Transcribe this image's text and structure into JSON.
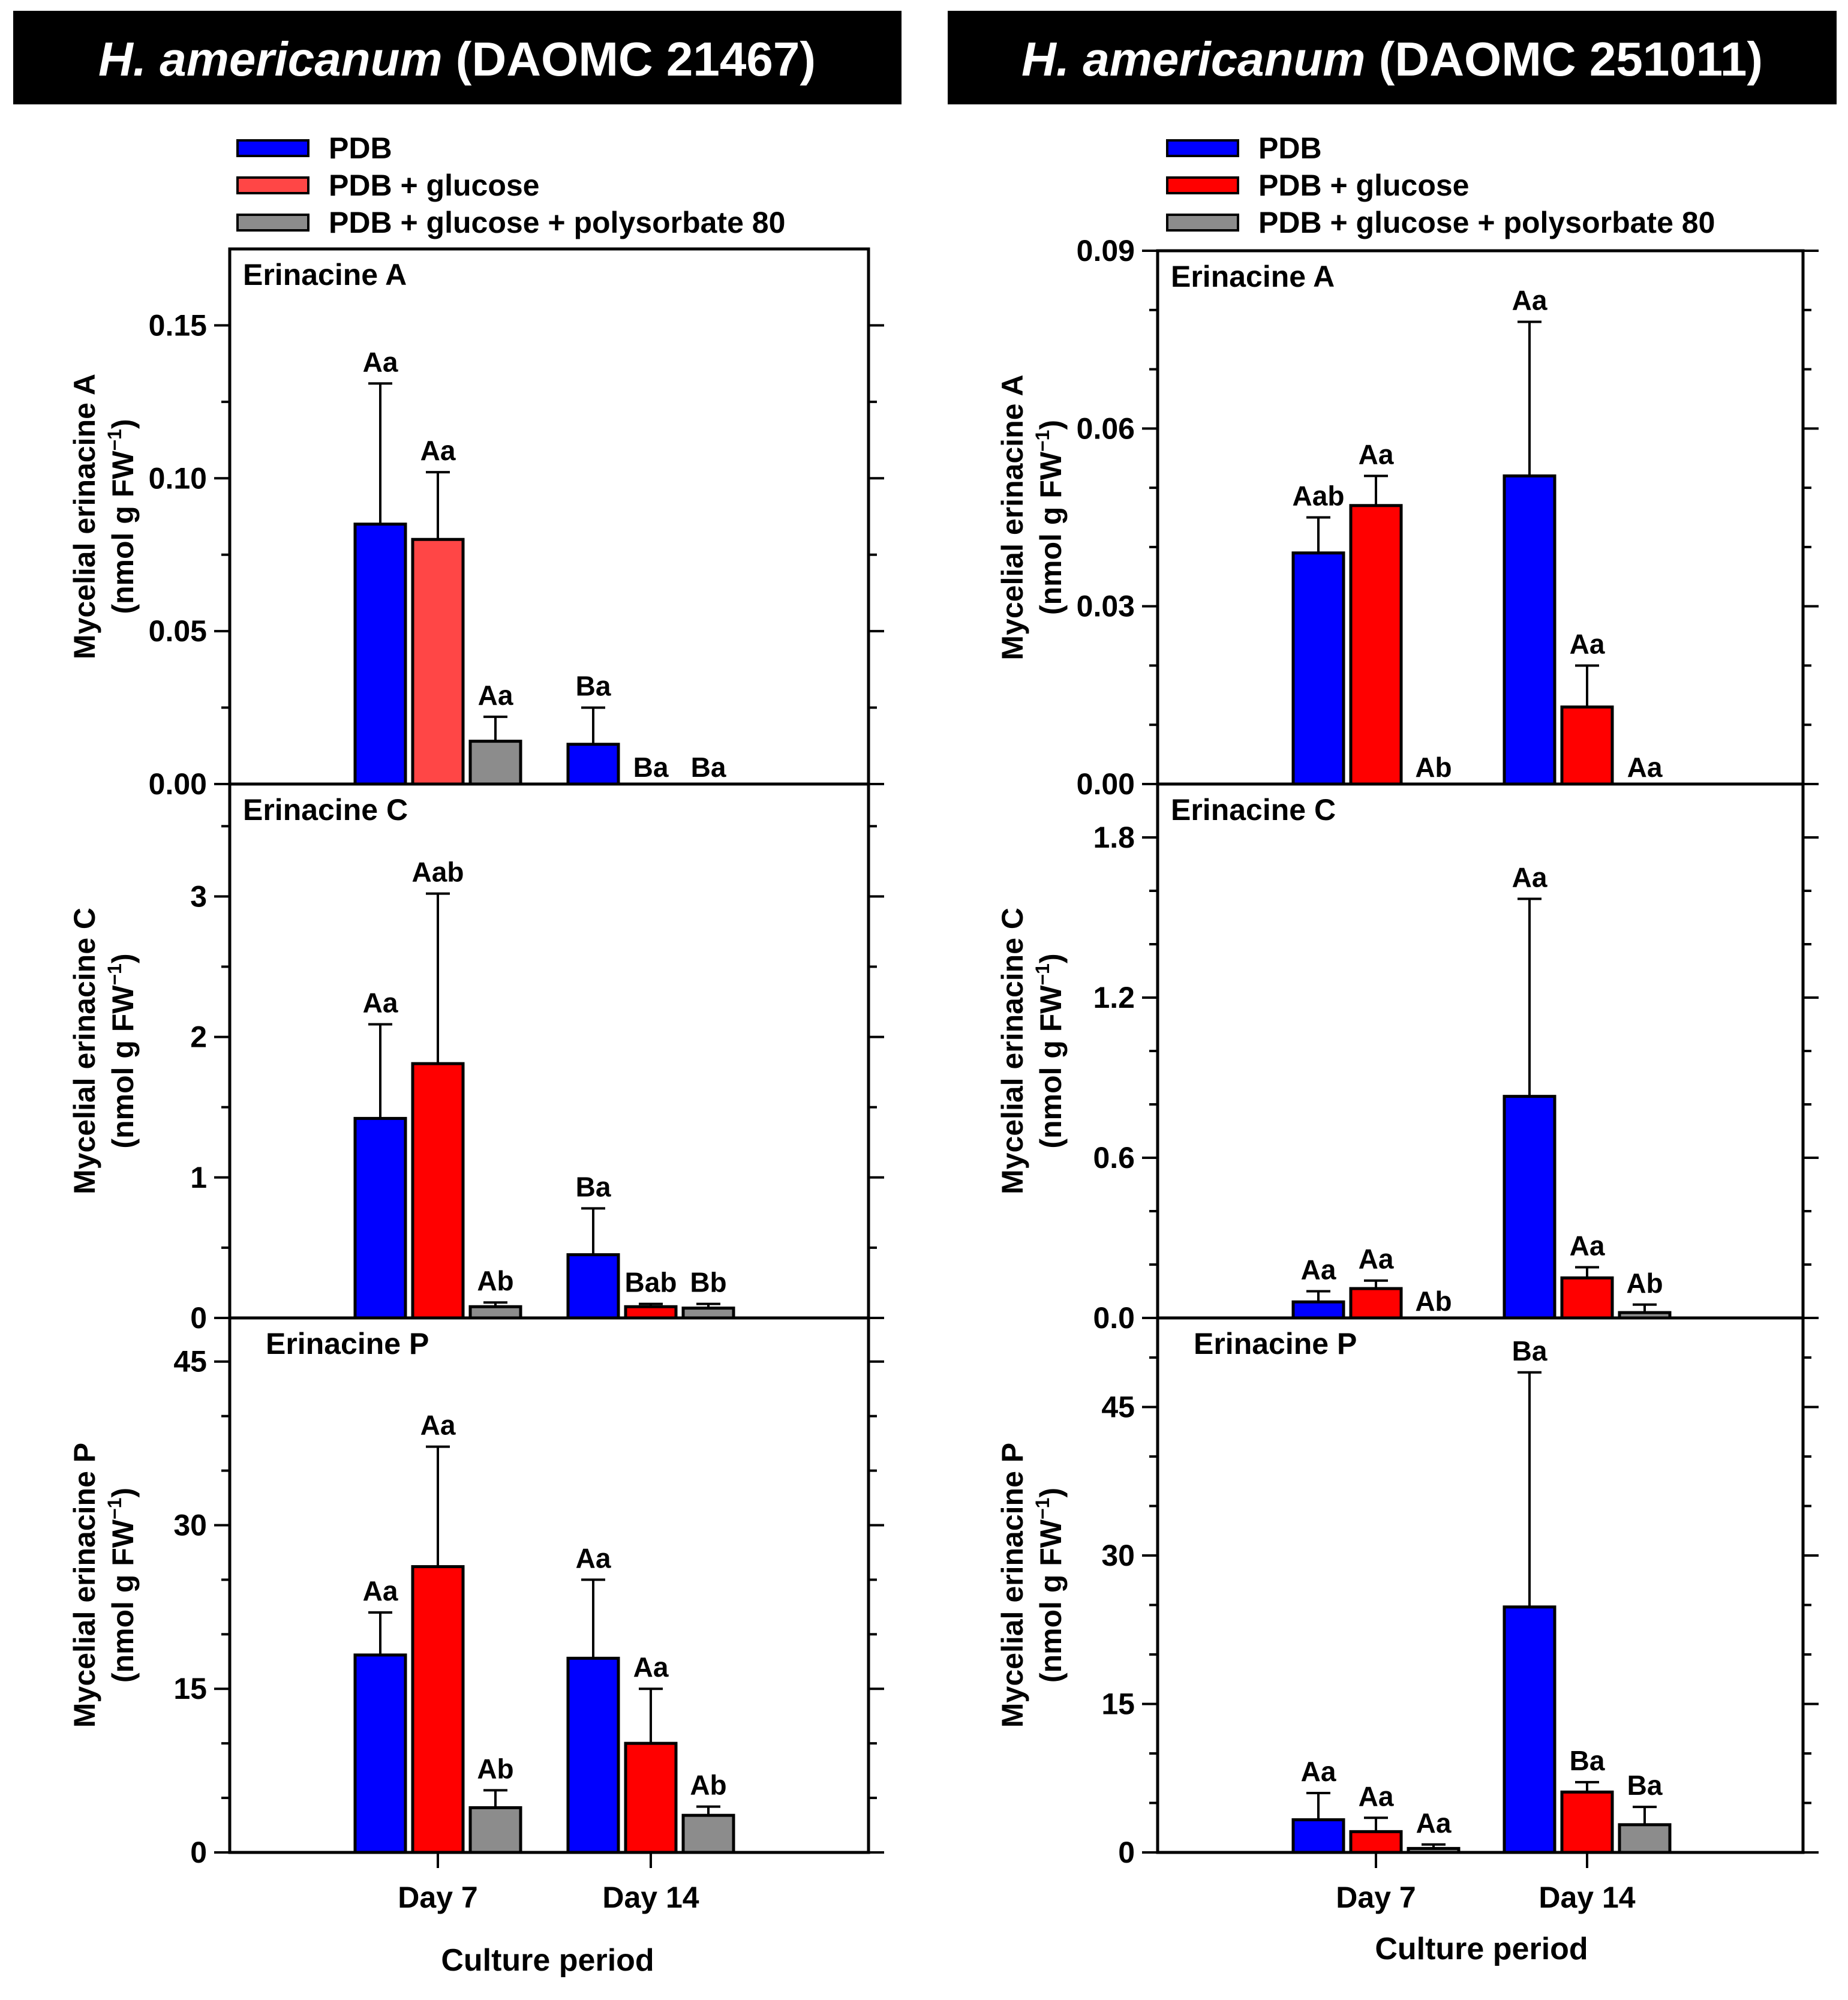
{
  "colors": {
    "blue": "#0000ff",
    "red": "#ff0000",
    "light_red": "#ff4646",
    "gray": "#8c8c8c",
    "header_bg": "#000000",
    "header_text": "#ffffff",
    "axis": "#000000"
  },
  "legend": {
    "entries": [
      "PDB",
      "PDB + glucose",
      "PDB + glucose + polysorbate 80"
    ]
  },
  "columns": [
    {
      "title_italic": "H. americanum",
      "title_rest": " (DAOMC 21467)",
      "xlabel": "Culture period",
      "categories": [
        "Day 7",
        "Day 14"
      ]
    },
    {
      "title_italic": "H.  americanum",
      "title_rest": " (DAOMC 251011)",
      "xlabel": "Culture period",
      "categories": [
        "Day 7",
        "Day 14"
      ]
    }
  ],
  "chart_data": [
    {
      "type": "bar",
      "strain": "H. americanum (DAOMC 21467)",
      "title": "Erinacine A",
      "ylabel": "Mycelial erinacine A",
      "ylabel_unit": "(nmol g FW",
      "ylabel_exp": "−1",
      "ylabel_close": ")",
      "ylim": [
        0,
        0.175
      ],
      "yticks": [
        0,
        0.05,
        0.1,
        0.15
      ],
      "yticklabels": [
        "0.00",
        "0.05",
        "0.10",
        "0.15"
      ],
      "minor_step": 0.025,
      "categories": [
        "Day 7",
        "Day 14"
      ],
      "series": [
        {
          "name": "PDB",
          "color": "#0000ff",
          "values": [
            0.085,
            0.013
          ],
          "errors": [
            0.131,
            0.025
          ],
          "labels": [
            "Aa",
            "Ba"
          ]
        },
        {
          "name": "PDB + glucose",
          "color": "#ff4646",
          "values": [
            0.08,
            0
          ],
          "errors": [
            0.102,
            null
          ],
          "labels": [
            "Aa",
            "Ba"
          ]
        },
        {
          "name": "PDB + glucose + polysorbate 80",
          "color": "#8c8c8c",
          "values": [
            0.014,
            0
          ],
          "errors": [
            0.022,
            null
          ],
          "labels": [
            "Aa",
            "Ba"
          ]
        }
      ]
    },
    {
      "type": "bar",
      "strain": "H. americanum (DAOMC 21467)",
      "title": "Erinacine C",
      "ylabel": "Mycelial erinacine C",
      "ylabel_unit": "(nmol g FW",
      "ylabel_exp": "−1",
      "ylabel_close": ")",
      "ylim": [
        0,
        3.8
      ],
      "yticks": [
        0,
        1,
        2,
        3
      ],
      "yticklabels": [
        "0",
        "1",
        "2",
        "3"
      ],
      "minor_step": 0.5,
      "categories": [
        "Day 7",
        "Day 14"
      ],
      "series": [
        {
          "name": "PDB",
          "color": "#0000ff",
          "values": [
            1.42,
            0.45
          ],
          "errors": [
            2.09,
            0.78
          ],
          "labels": [
            "Aa",
            "Ba"
          ]
        },
        {
          "name": "PDB + glucose",
          "color": "#ff0000",
          "values": [
            1.81,
            0.08
          ],
          "errors": [
            3.02,
            0.1
          ],
          "labels": [
            "Aab",
            "Bab"
          ]
        },
        {
          "name": "PDB + glucose + polysorbate 80",
          "color": "#8c8c8c",
          "values": [
            0.08,
            0.07
          ],
          "errors": [
            0.11,
            0.1
          ],
          "labels": [
            "Ab",
            "Bb"
          ]
        }
      ]
    },
    {
      "type": "bar",
      "strain": "H. americanum (DAOMC 21467)",
      "title": "Erinacine P",
      "ylabel": "Mycelial erinacine P",
      "ylabel_unit": "(nmol g FW",
      "ylabel_exp": "−1",
      "ylabel_close": ")",
      "ylim": [
        0,
        49
      ],
      "yticks": [
        0,
        15,
        30,
        45
      ],
      "yticklabels": [
        "0",
        "15",
        "30",
        "45"
      ],
      "minor_step": 5,
      "categories": [
        "Day 7",
        "Day 14"
      ],
      "series": [
        {
          "name": "PDB",
          "color": "#0000ff",
          "values": [
            18.1,
            17.8
          ],
          "errors": [
            22.0,
            25.0
          ],
          "labels": [
            "Aa",
            "Aa"
          ]
        },
        {
          "name": "PDB + glucose",
          "color": "#ff0000",
          "values": [
            26.2,
            10.0
          ],
          "errors": [
            37.2,
            15.0
          ],
          "labels": [
            "Aa",
            "Aa"
          ]
        },
        {
          "name": "PDB + glucose + polysorbate 80",
          "color": "#8c8c8c",
          "values": [
            4.1,
            3.4
          ],
          "errors": [
            5.7,
            4.2
          ],
          "labels": [
            "Ab",
            "Ab"
          ]
        }
      ]
    },
    {
      "type": "bar",
      "strain": "H. americanum (DAOMC 251011)",
      "title": "Erinacine A",
      "ylabel": "Mycelial erinacine A",
      "ylabel_unit": "(nmol g FW",
      "ylabel_exp": "−1",
      "ylabel_close": ")",
      "ylim": [
        0,
        0.09
      ],
      "yticks": [
        0,
        0.03,
        0.06,
        0.09
      ],
      "yticklabels": [
        "0.00",
        "0.03",
        "0.06",
        "0.09"
      ],
      "minor_step": 0.01,
      "categories": [
        "Day 7",
        "Day 14"
      ],
      "series": [
        {
          "name": "PDB",
          "color": "#0000ff",
          "values": [
            0.039,
            0.052
          ],
          "errors": [
            0.045,
            0.078
          ],
          "labels": [
            "Aab",
            "Aa"
          ]
        },
        {
          "name": "PDB + glucose",
          "color": "#ff0000",
          "values": [
            0.047,
            0.013
          ],
          "errors": [
            0.052,
            0.02
          ],
          "labels": [
            "Aa",
            "Aa"
          ]
        },
        {
          "name": "PDB + glucose + polysorbate 80",
          "color": "#8c8c8c",
          "values": [
            0,
            0
          ],
          "errors": [
            null,
            null
          ],
          "labels": [
            "Ab",
            "Aa"
          ]
        }
      ]
    },
    {
      "type": "bar",
      "strain": "H. americanum (DAOMC 251011)",
      "title": "Erinacine C",
      "ylabel": "Mycelial erinacine C",
      "ylabel_unit": "(nmol g FW",
      "ylabel_exp": "−1",
      "ylabel_close": ")",
      "ylim": [
        0,
        2.0
      ],
      "yticks": [
        0,
        0.6,
        1.2,
        1.8
      ],
      "yticklabels": [
        "0.0",
        "0.6",
        "1.2",
        "1.8"
      ],
      "minor_step": 0.2,
      "categories": [
        "Day 7",
        "Day 14"
      ],
      "series": [
        {
          "name": "PDB",
          "color": "#0000ff",
          "values": [
            0.06,
            0.83
          ],
          "errors": [
            0.1,
            1.57
          ],
          "labels": [
            "Aa",
            "Aa"
          ]
        },
        {
          "name": "PDB + glucose",
          "color": "#ff0000",
          "values": [
            0.11,
            0.15
          ],
          "errors": [
            0.14,
            0.19
          ],
          "labels": [
            "Aa",
            "Aa"
          ]
        },
        {
          "name": "PDB + glucose + polysorbate 80",
          "color": "#8c8c8c",
          "values": [
            0,
            0.02
          ],
          "errors": [
            null,
            0.05
          ],
          "labels": [
            "Ab",
            "Ab"
          ]
        }
      ]
    },
    {
      "type": "bar",
      "strain": "H. americanum (DAOMC 251011)",
      "title": "Erinacine P",
      "ylabel": "Mycelial erinacine P",
      "ylabel_unit": "(nmol g FW",
      "ylabel_exp": "−1",
      "ylabel_close": ")",
      "ylim": [
        0,
        54
      ],
      "yticks": [
        0,
        15,
        30,
        45
      ],
      "yticklabels": [
        "0",
        "15",
        "30",
        "45"
      ],
      "minor_step": 5,
      "categories": [
        "Day 7",
        "Day 14"
      ],
      "series": [
        {
          "name": "PDB",
          "color": "#0000ff",
          "values": [
            3.3,
            24.8
          ],
          "errors": [
            6.0,
            48.5
          ],
          "labels": [
            "Aa",
            "Ba"
          ]
        },
        {
          "name": "PDB + glucose",
          "color": "#ff0000",
          "values": [
            2.1,
            6.1
          ],
          "errors": [
            3.5,
            7.1
          ],
          "labels": [
            "Aa",
            "Ba"
          ]
        },
        {
          "name": "PDB + glucose + polysorbate 80",
          "color": "#8c8c8c",
          "values": [
            0.4,
            2.8
          ],
          "errors": [
            0.8,
            4.6
          ],
          "labels": [
            "Aa",
            "Ba"
          ]
        }
      ]
    }
  ]
}
